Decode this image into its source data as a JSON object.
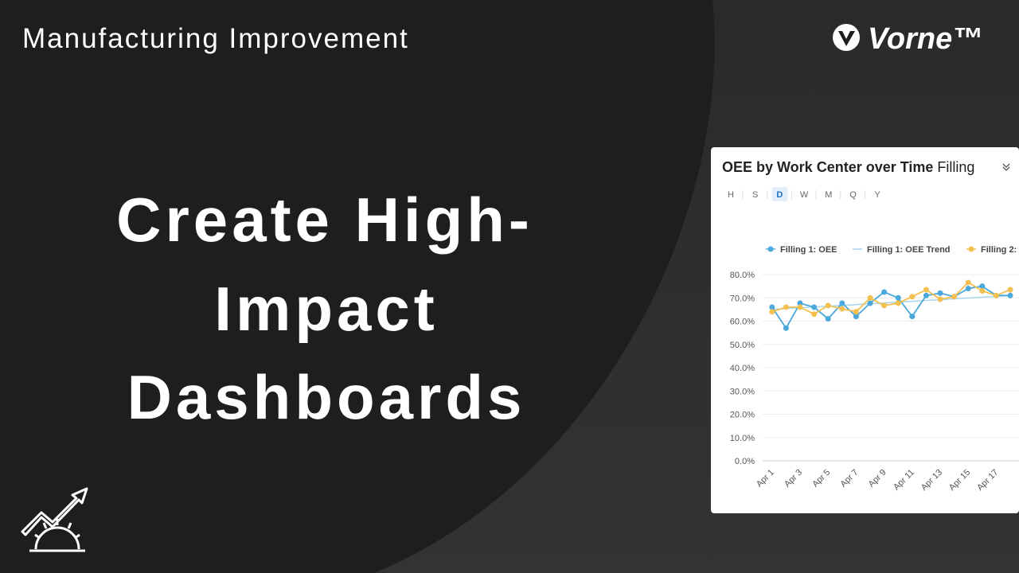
{
  "header": {
    "category": "Manufacturing Improvement",
    "brand": "Vorne™"
  },
  "headline": [
    "Create High-",
    "Impact",
    "Dashboards"
  ],
  "card": {
    "title": "OEE by Work Center over Time",
    "filter": "Filling",
    "periods": [
      "H",
      "S",
      "D",
      "W",
      "M",
      "Q",
      "Y"
    ],
    "selected": "D"
  },
  "chart_data": {
    "type": "line",
    "categories": [
      "Apr 1",
      null,
      "Apr 3",
      null,
      "Apr 5",
      null,
      "Apr 7",
      null,
      "Apr 9",
      null,
      "Apr 11",
      null,
      "Apr 13",
      null,
      "Apr 15",
      null,
      "Apr 17",
      null
    ],
    "series": [
      {
        "name": "Filling 1: OEE",
        "color": "#4aa8dc",
        "markers": true,
        "values": [
          66,
          57,
          67.7,
          66,
          61,
          67.7,
          62,
          67.7,
          72.5,
          70,
          62,
          71,
          72,
          70.5,
          74,
          75,
          71,
          71
        ]
      },
      {
        "name": "Filling 1: OEE Trend",
        "color": "#a9d6ee",
        "markers": false,
        "values": [
          65.0,
          65.4,
          65.7,
          66.1,
          66.4,
          66.8,
          67.1,
          67.5,
          67.8,
          68.2,
          68.5,
          68.9,
          69.2,
          69.6,
          69.9,
          70.3,
          70.6,
          71.0
        ]
      },
      {
        "name": "Filling 2:",
        "color": "#f3c04f",
        "markers": true,
        "values": [
          64,
          66,
          66,
          63,
          66.7,
          65.3,
          64,
          70,
          66.7,
          67.7,
          70.5,
          73.5,
          69.4,
          70.5,
          76.6,
          73,
          71,
          73.5
        ]
      }
    ],
    "ylim": [
      0,
      80
    ],
    "yticks": [
      {
        "value": 0,
        "label": "0.0%"
      },
      {
        "value": 10,
        "label": "10.0%"
      },
      {
        "value": 20,
        "label": "20.0%"
      },
      {
        "value": 30,
        "label": "30.0%"
      },
      {
        "value": 40,
        "label": "40.0%"
      },
      {
        "value": 50,
        "label": "50.0%"
      },
      {
        "value": 60,
        "label": "60.0%"
      },
      {
        "value": 70,
        "label": "70.0%"
      },
      {
        "value": 80,
        "label": "80.0%"
      }
    ],
    "grid": true
  }
}
